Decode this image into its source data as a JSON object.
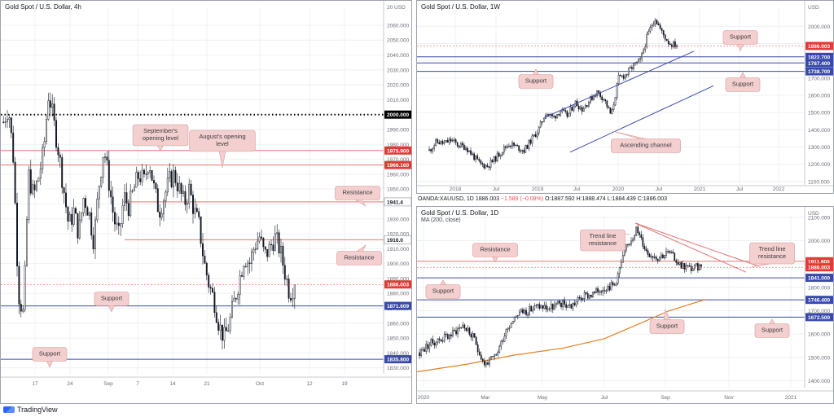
{
  "app": {
    "brand": "TradingView"
  },
  "colors": {
    "up": "#26a69a",
    "down": "#e53935",
    "candle_up": "#ffffff",
    "candle_border": "#131722",
    "resistance": "#e57373",
    "support": "#3949ab",
    "ma": "#e67e22",
    "callout_bg": "#f3cfcf",
    "callout_border": "#d99a9a"
  },
  "chart_data": [
    {
      "id": "h4",
      "type": "candlestick",
      "title": "Gold Spot / U.S. Dollar, 4h",
      "y_ticks": [
        "20 USD",
        "2060.000",
        "2050.000",
        "2040.000",
        "2030.000",
        "2020.000",
        "2010.000",
        "2000.000",
        "1990.000",
        "1980.000",
        "1970.000",
        "1960.000",
        "1950.000",
        "1940.000",
        "1930.000",
        "1920.000",
        "1910.000",
        "1900.000",
        "1890.000",
        "1880.000",
        "1870.000",
        "1860.000",
        "1850.000",
        "1840.000",
        "1830.000"
      ],
      "x_ticks": [
        "17",
        "24",
        "Sep",
        "7",
        "14",
        "21",
        "Oct",
        "12",
        "19"
      ],
      "ylim": [
        1826,
        2072
      ],
      "price_tags": [
        {
          "label": "2000.000",
          "value": 2000.0,
          "color": "#000000"
        },
        {
          "label": "1975.900",
          "value": 1975.9,
          "color": "#e53935"
        },
        {
          "label": "1966.160",
          "value": 1966.16,
          "color": "#e53935"
        },
        {
          "label": "1941.4",
          "value": 1941.4,
          "color": "#ffffff"
        },
        {
          "label": "1916.0",
          "value": 1916.0,
          "color": "#ffffff"
        },
        {
          "label": "1886.003",
          "value": 1886.003,
          "color": "#e53935"
        },
        {
          "label": "1871.609",
          "value": 1871.609,
          "color": "#3949ab"
        },
        {
          "label": "1835.800",
          "value": 1835.8,
          "color": "#3949ab"
        }
      ],
      "annotations": [
        {
          "text": "September's opening level"
        },
        {
          "text": "August's opening level"
        },
        {
          "text": "Resistance"
        },
        {
          "text": "Resistance"
        },
        {
          "text": "Support"
        },
        {
          "text": "Support"
        }
      ],
      "path": [
        1995,
        2005,
        1970,
        1880,
        1865,
        1960,
        1945,
        1958,
        1975,
        2015,
        1995,
        1975,
        1950,
        1925,
        1935,
        1920,
        1945,
        1935,
        1915,
        1952,
        1978,
        1955,
        1930,
        1918,
        1945,
        1938,
        1950,
        1960,
        1955,
        1970,
        1950,
        1935,
        1945,
        1955,
        1960,
        1950,
        1940,
        1950,
        1935,
        1925,
        1900,
        1885,
        1875,
        1858,
        1850,
        1860,
        1875,
        1890,
        1905,
        1900,
        1912,
        1918,
        1905,
        1910,
        1918,
        1910,
        1895,
        1880,
        1886
      ],
      "levels": [
        {
          "value": 2000.0,
          "style": "dotted"
        },
        {
          "value": 1975.9,
          "style": "resistance"
        },
        {
          "value": 1966.16,
          "style": "resistance"
        },
        {
          "value": 1941.4,
          "style": "resistance"
        },
        {
          "value": 1916.0,
          "style": "resistance"
        },
        {
          "value": 1871.609,
          "style": "support"
        },
        {
          "value": 1835.8,
          "style": "support"
        }
      ]
    },
    {
      "id": "w1",
      "type": "candlestick",
      "title": "Gold Spot / U.S. Dollar, 1W",
      "y_ticks": [
        "USD",
        "2000.000",
        "1900.000",
        "1800.000",
        "1700.000",
        "1600.000",
        "1500.000",
        "1400.000",
        "1300.000",
        "1200.000",
        "1100.000"
      ],
      "x_ticks": [
        "2018",
        "Jul",
        "2019",
        "Jul",
        "2020",
        "Jul",
        "2021",
        "Jul",
        "2022"
      ],
      "ylim": [
        1080,
        2110
      ],
      "price_tags": [
        {
          "label": "1886.003",
          "value": 1886.003,
          "color": "#e53935"
        },
        {
          "label": "1822.700",
          "value": 1822.7,
          "color": "#3949ab"
        },
        {
          "label": "1787.400",
          "value": 1787.4,
          "color": "#3949ab"
        },
        {
          "label": "1738.700",
          "value": 1738.7,
          "color": "#3949ab"
        }
      ],
      "annotations": [
        {
          "text": "Support"
        },
        {
          "text": "Support"
        },
        {
          "text": "Support"
        },
        {
          "text": "Ascending channel"
        }
      ],
      "path": [
        1280,
        1330,
        1320,
        1340,
        1310,
        1300,
        1250,
        1200,
        1190,
        1230,
        1280,
        1320,
        1300,
        1280,
        1340,
        1400,
        1500,
        1470,
        1510,
        1480,
        1560,
        1520,
        1570,
        1620,
        1580,
        1480,
        1700,
        1720,
        1770,
        1800,
        1950,
        2050,
        1960,
        1900,
        1890
      ],
      "levels": [
        {
          "value": 1822.7,
          "style": "support"
        },
        {
          "value": 1787.4,
          "style": "support"
        },
        {
          "value": 1738.7,
          "style": "support"
        }
      ]
    },
    {
      "id": "d1",
      "type": "candlestick",
      "title": "Gold Spot / U.S. Dollar, 1D",
      "subtitle": "MA (200, close)",
      "ohlc": {
        "symbol": "OANDA:XAUUSD, 1D",
        "price": "1886.003",
        "change": "−1.589 (−0.08%)",
        "o": "O:1887.592",
        "h": "H:1888.474",
        "l": "L:1884.439",
        "c": "C:1886.003"
      },
      "y_ticks": [
        "USD",
        "2100.000",
        "2000.000",
        "1900.000",
        "1800.000",
        "1700.000",
        "1600.000",
        "1500.000",
        "1400.000"
      ],
      "x_ticks": [
        "2020",
        "Mar",
        "May",
        "Jul",
        "Sep",
        "Nov",
        "2021"
      ],
      "ylim": [
        1370,
        2110
      ],
      "price_tags": [
        {
          "label": "1911.900",
          "value": 1911.9,
          "color": "#e53935"
        },
        {
          "label": "1886.003",
          "value": 1886.003,
          "color": "#e53935"
        },
        {
          "label": "1841.000",
          "value": 1841.0,
          "color": "#3949ab"
        },
        {
          "label": "1746.400",
          "value": 1746.4,
          "color": "#3949ab"
        },
        {
          "label": "1672.500",
          "value": 1672.5,
          "color": "#3949ab"
        }
      ],
      "annotations": [
        {
          "text": "Trend line resistance"
        },
        {
          "text": "Resistance"
        },
        {
          "text": "Trend line resistance"
        },
        {
          "text": "Support"
        },
        {
          "text": "Support"
        },
        {
          "text": "Support"
        }
      ],
      "path": [
        1520,
        1560,
        1580,
        1600,
        1640,
        1580,
        1470,
        1500,
        1620,
        1690,
        1700,
        1720,
        1710,
        1730,
        1720,
        1760,
        1770,
        1800,
        1810,
        1960,
        2050,
        1950,
        1930,
        1950,
        1900,
        1880,
        1890
      ],
      "levels": [
        {
          "value": 1911.9,
          "style": "resistance"
        },
        {
          "value": 1841.0,
          "style": "support"
        },
        {
          "value": 1746.4,
          "style": "support"
        },
        {
          "value": 1672.5,
          "style": "support"
        }
      ]
    }
  ]
}
